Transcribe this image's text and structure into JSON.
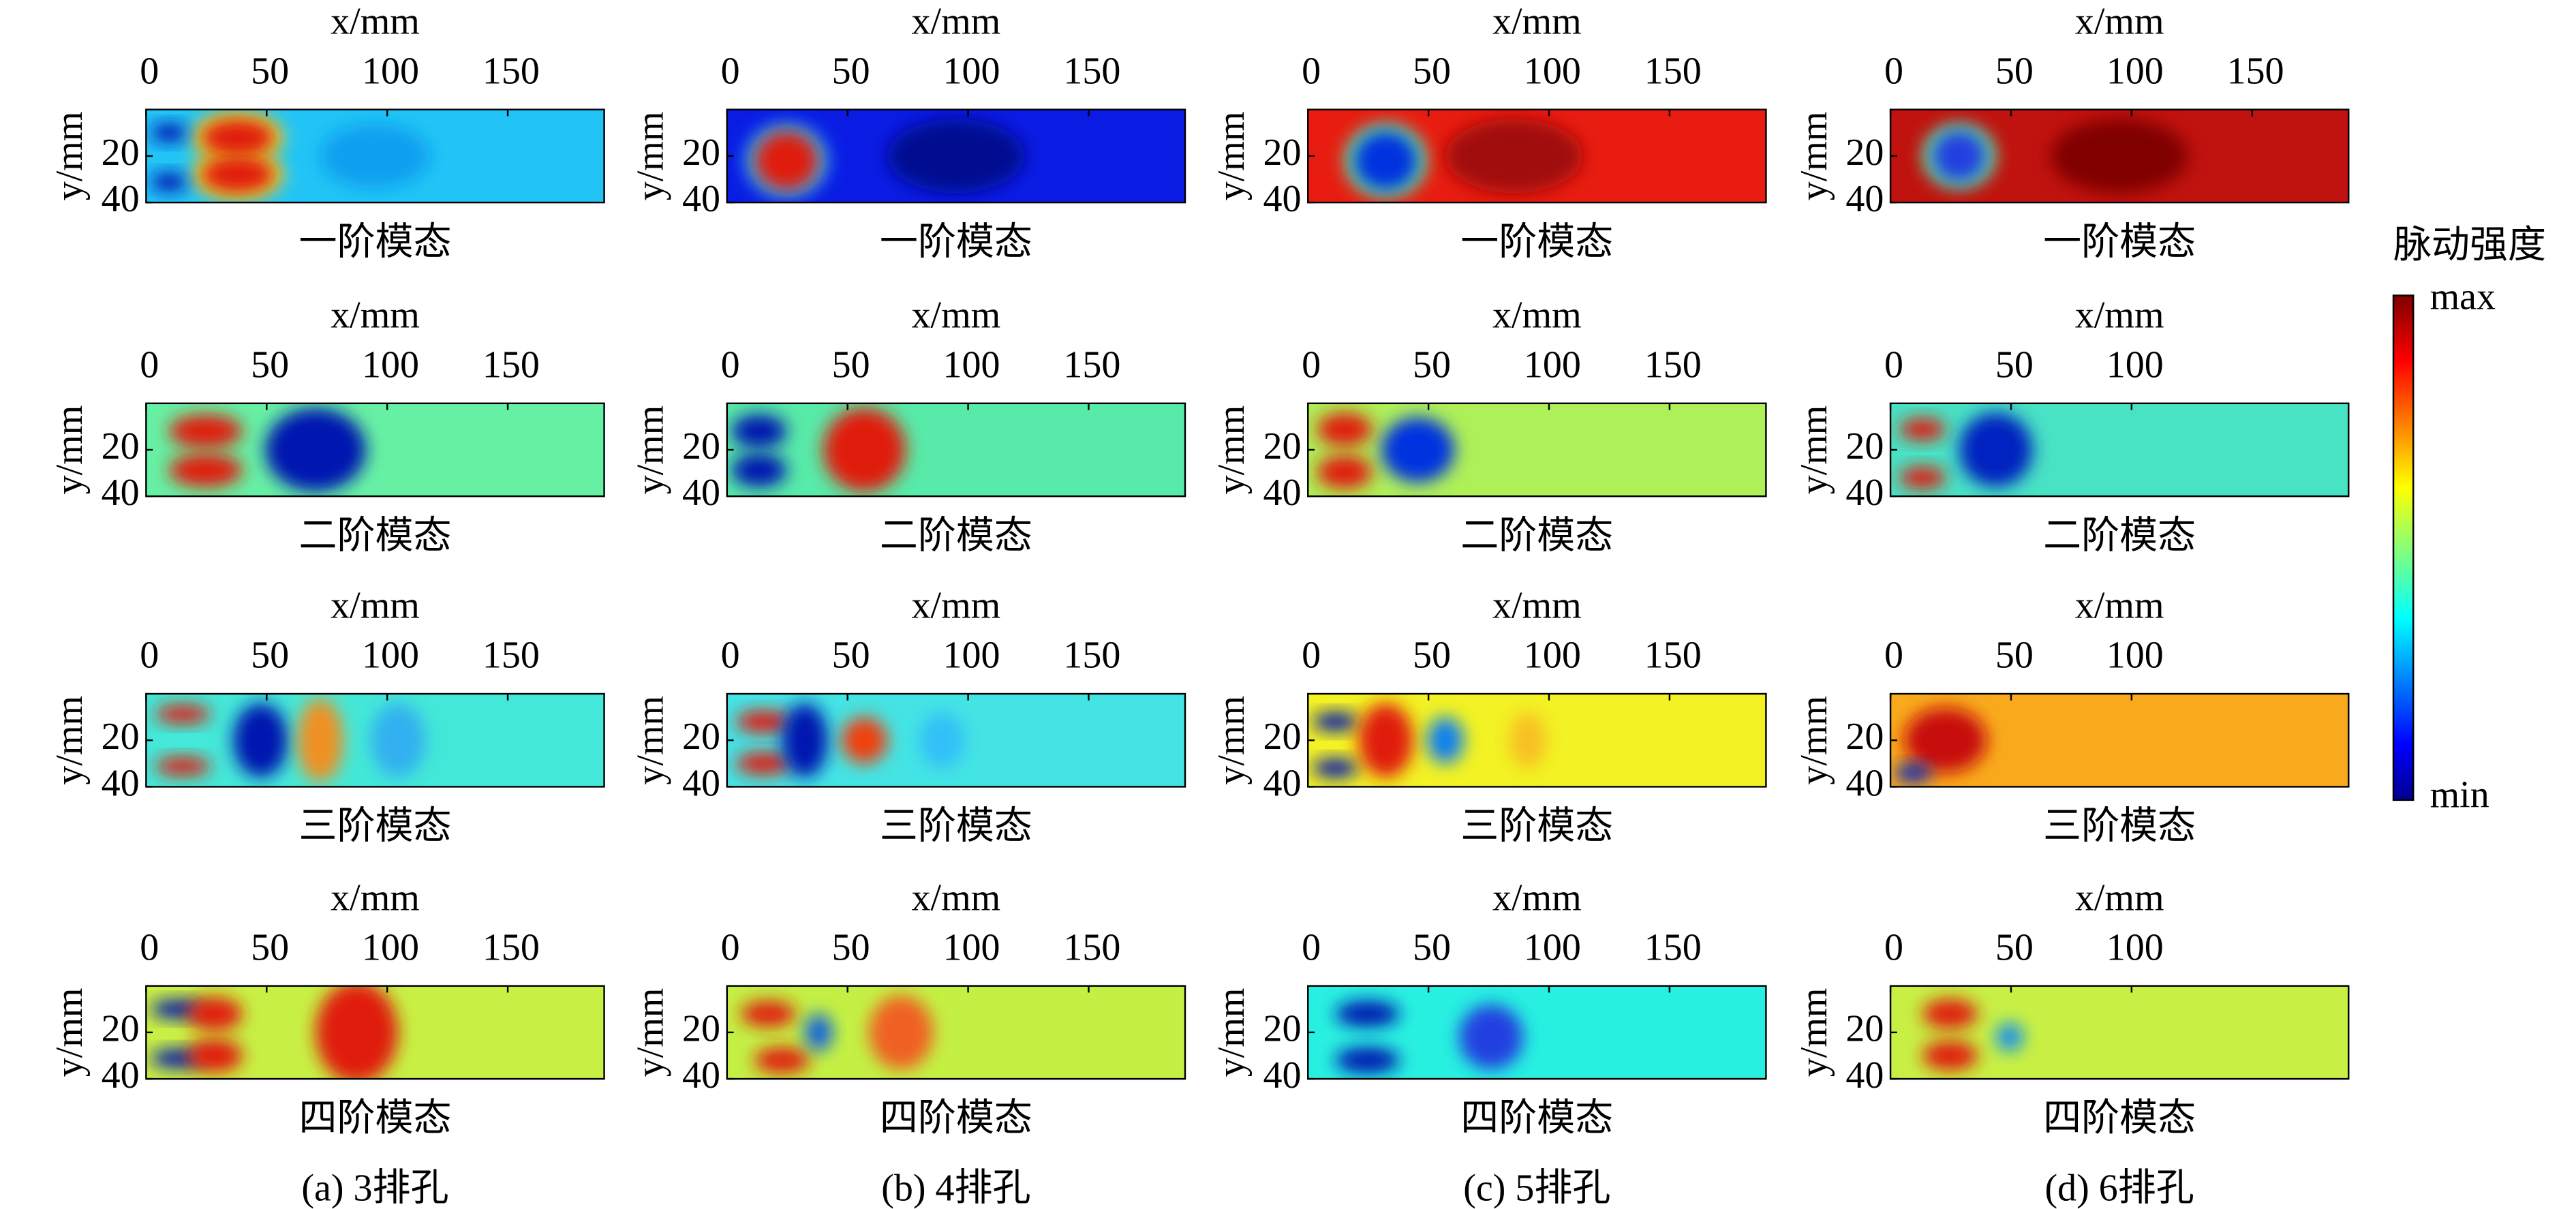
{
  "chart_data": [
    {
      "type": "heatmap",
      "title": "一阶模态",
      "xlabel": "x/mm",
      "ylabel": "y/mm",
      "xlim": [
        0,
        190
      ],
      "ylim": [
        0,
        40
      ],
      "xticks": [
        0,
        50,
        100,
        150
      ],
      "yticks": [
        20,
        40
      ],
      "color": "#22c4f6"
    },
    {
      "type": "heatmap",
      "title": "二阶模态",
      "xlabel": "x/mm",
      "ylabel": "y/mm",
      "xlim": [
        0,
        190
      ],
      "ylim": [
        0,
        40
      ],
      "xticks": [
        0,
        50,
        100,
        150
      ],
      "yticks": [
        20,
        40
      ],
      "color": "#66f0a4"
    },
    {
      "type": "heatmap",
      "title": "三阶模态",
      "xlabel": "x/mm",
      "ylabel": "y/mm",
      "xlim": [
        0,
        190
      ],
      "ylim": [
        0,
        40
      ],
      "xticks": [
        0,
        50,
        100,
        150
      ],
      "yticks": [
        20,
        40
      ],
      "color": "#44e8d8"
    },
    {
      "type": "heatmap",
      "title": "四阶模态",
      "xlabel": "x/mm",
      "ylabel": "y/mm",
      "xlim": [
        0,
        190
      ],
      "ylim": [
        0,
        40
      ],
      "xticks": [
        0,
        50,
        100,
        150
      ],
      "yticks": [
        20,
        40
      ],
      "color": "#c8f044"
    },
    {
      "type": "heatmap",
      "title": "一阶模态",
      "xlabel": "x/mm",
      "ylabel": "y/mm",
      "xlim": [
        0,
        190
      ],
      "ylim": [
        0,
        40
      ],
      "xticks": [
        0,
        50,
        100,
        150
      ],
      "yticks": [
        20,
        40
      ],
      "color": "#0a1ce4"
    },
    {
      "type": "heatmap",
      "title": "二阶模态",
      "xlabel": "x/mm",
      "ylabel": "y/mm",
      "xlim": [
        0,
        190
      ],
      "ylim": [
        0,
        40
      ],
      "xticks": [
        0,
        50,
        100,
        150
      ],
      "yticks": [
        20,
        40
      ],
      "color": "#58eaa8"
    },
    {
      "type": "heatmap",
      "title": "三阶模态",
      "xlabel": "x/mm",
      "ylabel": "y/mm",
      "xlim": [
        0,
        190
      ],
      "ylim": [
        0,
        40
      ],
      "xticks": [
        0,
        50,
        100,
        150
      ],
      "yticks": [
        20,
        40
      ],
      "color": "#44e4e4"
    },
    {
      "type": "heatmap",
      "title": "四阶模态",
      "xlabel": "x/mm",
      "ylabel": "y/mm",
      "xlim": [
        0,
        190
      ],
      "ylim": [
        0,
        40
      ],
      "xticks": [
        0,
        50,
        100,
        150
      ],
      "yticks": [
        20,
        40
      ],
      "color": "#c4f044"
    },
    {
      "type": "heatmap",
      "title": "一阶模态",
      "xlabel": "x/mm",
      "ylabel": "y/mm",
      "xlim": [
        0,
        190
      ],
      "ylim": [
        0,
        40
      ],
      "xticks": [
        0,
        50,
        100,
        150
      ],
      "yticks": [
        20,
        40
      ],
      "color": "#e81c10"
    },
    {
      "type": "heatmap",
      "title": "二阶模态",
      "xlabel": "x/mm",
      "ylabel": "y/mm",
      "xlim": [
        0,
        190
      ],
      "ylim": [
        0,
        40
      ],
      "xticks": [
        0,
        50,
        100,
        150
      ],
      "yticks": [
        20,
        40
      ],
      "color": "#aef058"
    },
    {
      "type": "heatmap",
      "title": "三阶模态",
      "xlabel": "x/mm",
      "ylabel": "y/mm",
      "xlim": [
        0,
        190
      ],
      "ylim": [
        0,
        40
      ],
      "xticks": [
        0,
        50,
        100,
        150
      ],
      "yticks": [
        20,
        40
      ],
      "color": "#f2f224"
    },
    {
      "type": "heatmap",
      "title": "四阶模态",
      "xlabel": "x/mm",
      "ylabel": "y/mm",
      "xlim": [
        0,
        190
      ],
      "ylim": [
        0,
        40
      ],
      "xticks": [
        0,
        50,
        100,
        150
      ],
      "yticks": [
        20,
        40
      ],
      "color": "#28f0e0"
    },
    {
      "type": "heatmap",
      "title": "一阶模态",
      "xlabel": "x/mm",
      "ylabel": "y/mm",
      "xlim": [
        0,
        190
      ],
      "ylim": [
        0,
        40
      ],
      "xticks": [
        0,
        50,
        100,
        150
      ],
      "yticks": [
        20,
        40
      ],
      "color": "#c0120e"
    },
    {
      "type": "heatmap",
      "title": "二阶模态",
      "xlabel": "x/mm",
      "ylabel": "y/mm",
      "xlim": [
        0,
        190
      ],
      "ylim": [
        0,
        40
      ],
      "xticks": [
        0,
        50,
        100
      ],
      "yticks": [
        20,
        40
      ],
      "color": "#48e2c4"
    },
    {
      "type": "heatmap",
      "title": "三阶模态",
      "xlabel": "x/mm",
      "ylabel": "y/mm",
      "xlim": [
        0,
        190
      ],
      "ylim": [
        0,
        40
      ],
      "xticks": [
        0,
        50,
        100
      ],
      "yticks": [
        20,
        40
      ],
      "color": "#f8aa1c"
    },
    {
      "type": "heatmap",
      "title": "四阶模态",
      "xlabel": "x/mm",
      "ylabel": "y/mm",
      "xlim": [
        0,
        190
      ],
      "ylim": [
        0,
        40
      ],
      "xticks": [
        0,
        50,
        100
      ],
      "yticks": [
        20,
        40
      ],
      "color": "#c8f044"
    }
  ],
  "colorbar": {
    "title": "脉动强度",
    "max_label": "max",
    "min_label": "min"
  },
  "captions": [
    "(a) 3排孔",
    "(b) 4排孔",
    "(c) 5排孔",
    "(d) 6排孔"
  ]
}
